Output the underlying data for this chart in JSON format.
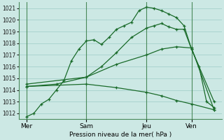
{
  "background_color": "#cce8e4",
  "grid_color": "#aad4cf",
  "line_color": "#1a6b2a",
  "xlabel_text": "Pression niveau de la mer( hPa )",
  "yticks": [
    1012,
    1013,
    1014,
    1015,
    1016,
    1017,
    1018,
    1019,
    1020,
    1021
  ],
  "ylim": [
    1011.5,
    1021.5
  ],
  "xtick_labels": [
    "Mer",
    "Sam",
    "Jeu",
    "Ven"
  ],
  "xtick_positions": [
    0,
    8,
    16,
    22
  ],
  "vline_positions": [
    0,
    8,
    16,
    22
  ],
  "xlim": [
    -1,
    26
  ],
  "lines": [
    {
      "x": [
        0,
        1,
        2,
        3,
        4,
        5,
        6,
        7,
        8,
        9,
        10,
        11,
        12,
        13,
        14,
        15,
        16,
        17,
        18,
        19,
        20,
        21,
        22,
        23,
        24,
        25
      ],
      "y": [
        1011.7,
        1012.0,
        1012.8,
        1013.2,
        1014.0,
        1014.8,
        1016.5,
        1017.5,
        1018.2,
        1018.3,
        1017.9,
        1018.5,
        1019.2,
        1019.5,
        1019.8,
        1020.8,
        1021.1,
        1021.0,
        1020.8,
        1020.5,
        1020.2,
        1019.5,
        1017.5,
        1016.0,
        1013.0,
        1012.5
      ]
    },
    {
      "x": [
        0,
        4,
        8,
        10,
        12,
        14,
        16,
        17,
        18,
        19,
        20,
        21,
        22,
        25
      ],
      "y": [
        1014.3,
        1014.5,
        1015.1,
        1016.0,
        1017.2,
        1018.5,
        1019.3,
        1019.5,
        1019.7,
        1019.4,
        1019.2,
        1019.2,
        1017.5,
        1013.0
      ]
    },
    {
      "x": [
        0,
        8,
        12,
        16,
        18,
        20,
        22,
        25
      ],
      "y": [
        1014.5,
        1015.1,
        1016.2,
        1017.0,
        1017.5,
        1017.7,
        1017.6,
        1012.3
      ]
    },
    {
      "x": [
        0,
        8,
        12,
        16,
        18,
        20,
        22,
        25
      ],
      "y": [
        1014.3,
        1014.5,
        1014.2,
        1013.8,
        1013.5,
        1013.1,
        1012.8,
        1012.3
      ]
    }
  ]
}
